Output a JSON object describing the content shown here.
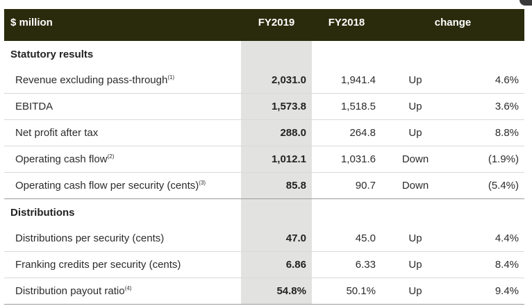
{
  "header": {
    "label": "$ million",
    "fy2019": "FY2019",
    "fy2018": "FY2018",
    "change": "change"
  },
  "sections": [
    {
      "title": "Statutory results",
      "rows": [
        {
          "label": "Revenue excluding pass-through",
          "note": "(1)",
          "fy2019": "2,031.0",
          "fy2018": "1,941.4",
          "direction": "Up",
          "percent": "4.6%"
        },
        {
          "label": "EBITDA",
          "note": "",
          "fy2019": "1,573.8",
          "fy2018": "1,518.5",
          "direction": "Up",
          "percent": "3.6%"
        },
        {
          "label": "Net profit after tax",
          "note": "",
          "fy2019": "288.0",
          "fy2018": "264.8",
          "direction": "Up",
          "percent": "8.8%"
        },
        {
          "label": "Operating cash flow",
          "note": "(2)",
          "fy2019": "1,012.1",
          "fy2018": "1,031.6",
          "direction": "Down",
          "percent": "(1.9%)"
        },
        {
          "label": "Operating cash flow per security (cents)",
          "note": "(3)",
          "fy2019": "85.8",
          "fy2018": "90.7",
          "direction": "Down",
          "percent": "(5.4%)"
        }
      ]
    },
    {
      "title": "Distributions",
      "rows": [
        {
          "label": "Distributions per security (cents)",
          "note": "",
          "fy2019": "47.0",
          "fy2018": "45.0",
          "direction": "Up",
          "percent": "4.4%"
        },
        {
          "label": "Franking credits per security (cents)",
          "note": "",
          "fy2019": "6.86",
          "fy2018": "6.33",
          "direction": "Up",
          "percent": "8.4%"
        },
        {
          "label": "Distribution payout ratio",
          "note": "(4)",
          "fy2019": "54.8%",
          "fy2018": "50.1%",
          "direction": "Up",
          "percent": "9.4%"
        }
      ]
    }
  ],
  "colors": {
    "header_bg": "#2a2b0c",
    "highlight_column": "#e2e2e0"
  }
}
